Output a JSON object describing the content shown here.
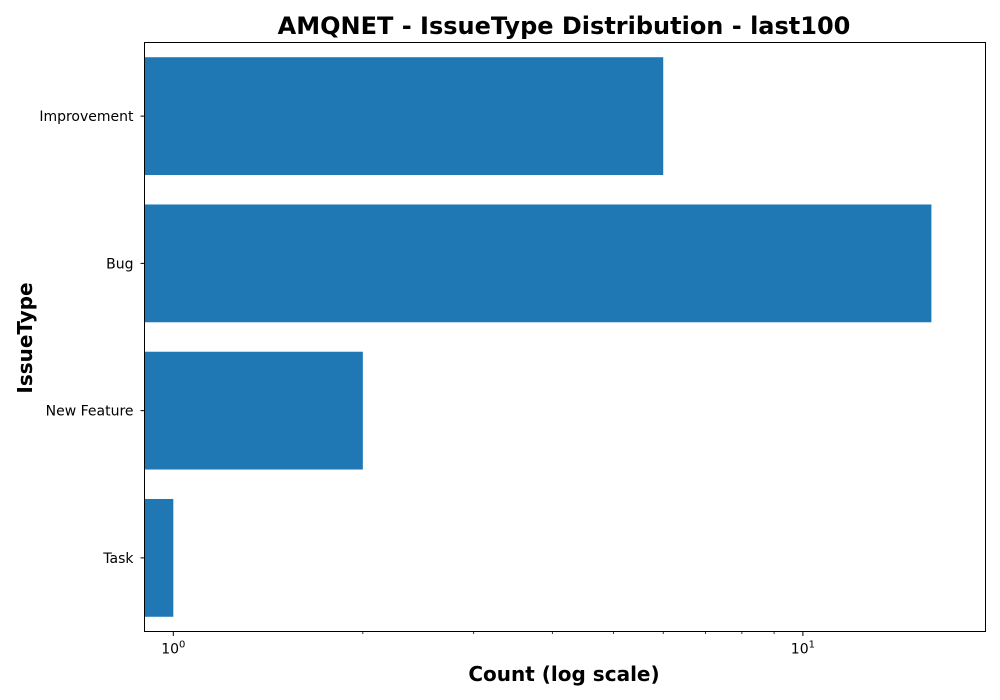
{
  "chart_data": {
    "type": "bar",
    "orientation": "horizontal",
    "title": "AMQNET - IssueType Distribution - last100",
    "xlabel": "Count (log scale)",
    "ylabel": "IssueType",
    "x_scale": "log",
    "xlim": [
      0.9,
      19.5
    ],
    "x_ticks": [
      {
        "value": 1,
        "base": "10",
        "exp": "0"
      },
      {
        "value": 10,
        "base": "10",
        "exp": "1"
      }
    ],
    "categories": [
      "Improvement",
      "Bug",
      "New Feature",
      "Task"
    ],
    "values": [
      6,
      16,
      2,
      1
    ],
    "bar_color": "#1f77b4",
    "grid": false,
    "legend": "none"
  }
}
